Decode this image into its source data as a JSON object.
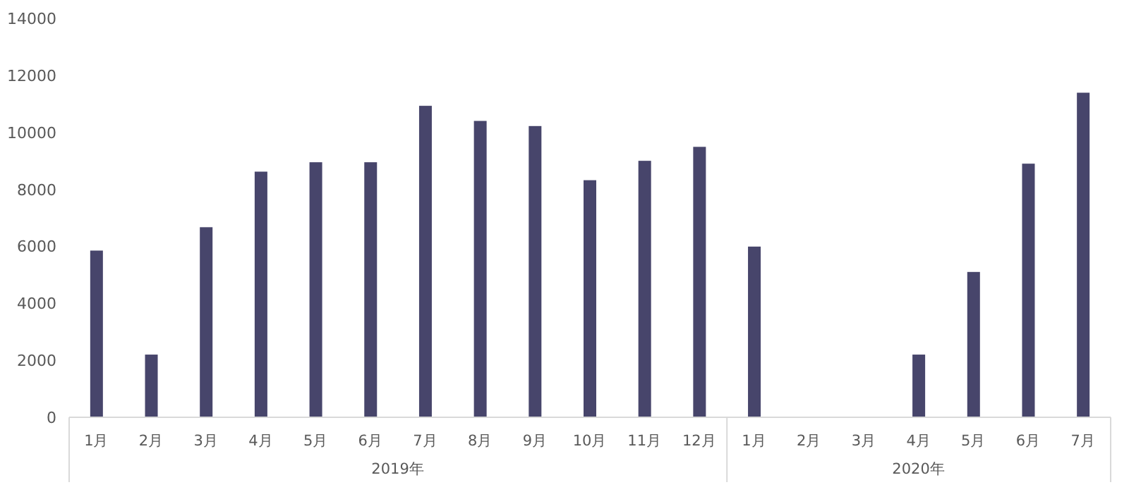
{
  "chart_data": {
    "type": "bar",
    "categories": [
      "1月",
      "2月",
      "3月",
      "4月",
      "5月",
      "6月",
      "7月",
      "8月",
      "9月",
      "10月",
      "11月",
      "12月",
      "1月",
      "2月",
      "3月",
      "4月",
      "5月",
      "6月",
      "7月"
    ],
    "series": [
      {
        "color": "#47456b",
        "values": [
          5850,
          2200,
          6670,
          8620,
          8950,
          8950,
          10930,
          10400,
          10220,
          8320,
          9000,
          9490,
          5990,
          null,
          null,
          2200,
          5100,
          8900,
          11390
        ]
      }
    ],
    "annotations": [
      "2019年",
      "2020年"
    ],
    "ylim": [
      0,
      14000
    ],
    "yticks": [
      0,
      2000,
      4000,
      6000,
      8000,
      10000,
      12000,
      14000
    ]
  }
}
